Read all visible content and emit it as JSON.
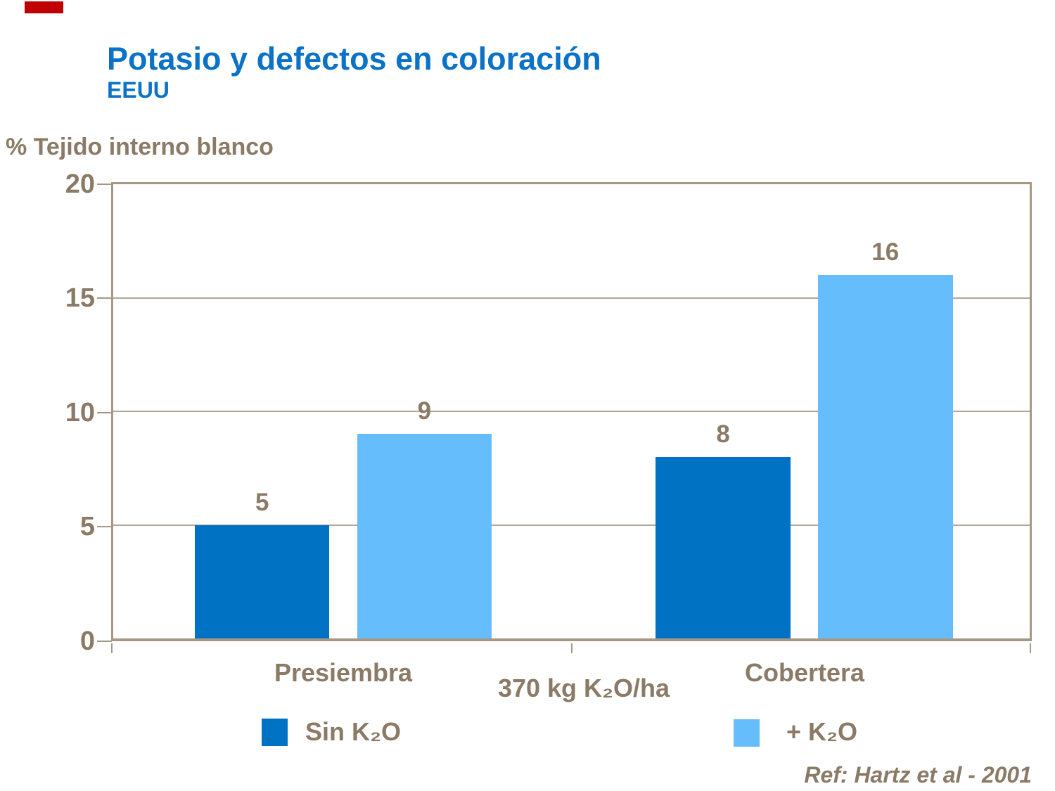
{
  "slide": {
    "title": "Potasio y defectos en coloración",
    "subtitle": "EEUU",
    "footnote": "Ref: Hartz et al - 2001"
  },
  "colors": {
    "title_blue": "#0B72C6",
    "bar_dark_blue": "#0072C3",
    "bar_light_blue": "#66BDFB",
    "text_brown": "#8A7A66",
    "axis_brown": "#A79884",
    "gridline_brown": "#B3A697",
    "accent_red": "#C00000",
    "background": "#FFFFFF"
  },
  "chart_data": {
    "type": "bar",
    "title": "Potasio y defectos en coloración",
    "subtitle": "EEUU",
    "ylabel": "% Tejido interno blanco",
    "xlabel": "370 kg K₂O/ha",
    "categories": [
      "Presiembra",
      "Cobertera"
    ],
    "series": [
      {
        "name": "Sin K₂O",
        "color": "#0072C3",
        "values": [
          5,
          8
        ]
      },
      {
        "name": "+ K₂O",
        "color": "#66BDFB",
        "values": [
          9,
          16
        ]
      }
    ],
    "ylim": [
      0,
      20
    ],
    "yticks": [
      0,
      5,
      10,
      15,
      20
    ],
    "grid": true,
    "legend_position": "bottom"
  }
}
